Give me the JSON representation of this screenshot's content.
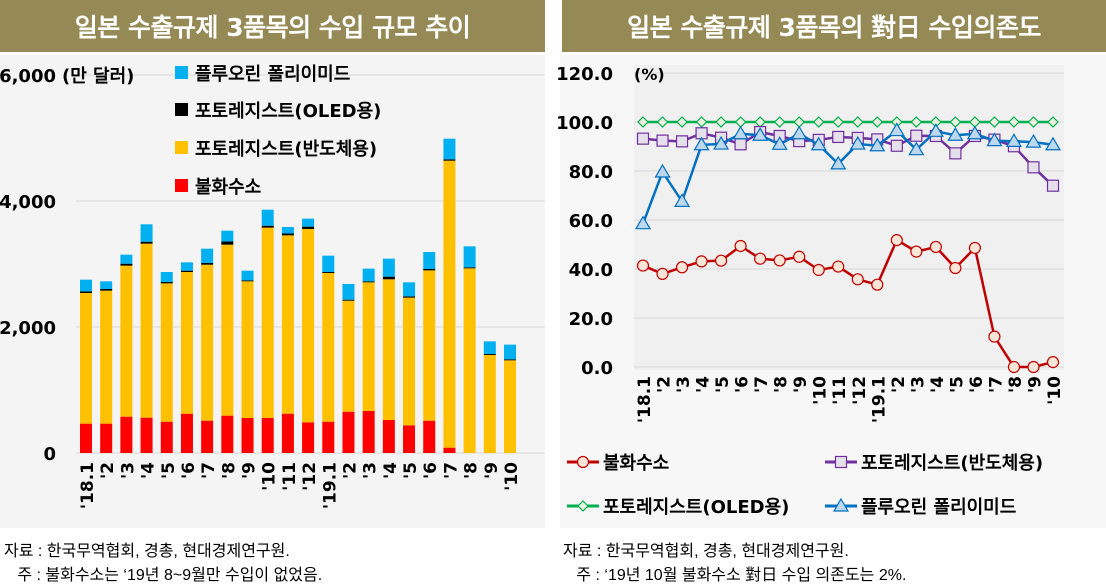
{
  "left_panel": {
    "title": "일본 수출규제 3품목의 수입 규모 추이",
    "notes": [
      "자료 : 한국무역협회, 경총, 현대경제연구원.",
      "   주 : 불화수소는 ‘19년 8~9월만 수입이 없었음."
    ]
  },
  "right_panel": {
    "title": "일본 수출규제 3품목의 對日 수입의존도",
    "notes": [
      "자료 : 한국무역협회, 경총, 현대경제연구원.",
      "   주 : ‘19년 10월 불화수소 對日 수입 의존도는 2%."
    ]
  },
  "chart_data": [
    {
      "type": "bar",
      "stacked": true,
      "unit_label": "(만 달러)",
      "categories": [
        "'18.1",
        "'2",
        "'3",
        "'4",
        "'5",
        "'6",
        "'7",
        "'8",
        "'9",
        "'10",
        "'11",
        "'12",
        "'19.1",
        "'2",
        "'3",
        "'4",
        "'5",
        "'6",
        "'7",
        "'8",
        "'9",
        "'10"
      ],
      "ylim": [
        0,
        6000
      ],
      "yticks": [
        "0",
        "2,000",
        "4,000",
        "6,000"
      ],
      "grid": true,
      "legend_placement": "top-center",
      "series": [
        {
          "name": "불화수소",
          "color": "#FF0000",
          "values": [
            466,
            466,
            577,
            561,
            497,
            624,
            513,
            593,
            556,
            556,
            624,
            487,
            497,
            656,
            667,
            524,
            439,
            513,
            85,
            0,
            0,
            0
          ]
        },
        {
          "name": "포토레지스트(반도체용)",
          "color": "#FFC000",
          "values": [
            2074,
            2111,
            2397,
            2762,
            2196,
            2249,
            2476,
            2714,
            2169,
            3021,
            2831,
            3069,
            2360,
            1762,
            2042,
            2233,
            2027,
            2386,
            4555,
            2931,
            1556,
            1471
          ]
        },
        {
          "name": "포토레지스트(OLED용)",
          "color": "#000000",
          "values": [
            26,
            26,
            31,
            31,
            21,
            21,
            27,
            53,
            16,
            31,
            32,
            37,
            16,
            16,
            16,
            42,
            21,
            22,
            21,
            16,
            15,
            16
          ]
        },
        {
          "name": "플루오린 폴리이미드",
          "color": "#00B0F0",
          "values": [
            185,
            122,
            143,
            276,
            159,
            132,
            227,
            169,
            153,
            254,
            100,
            127,
            259,
            249,
            201,
            286,
            222,
            269,
            328,
            333,
            201,
            233
          ]
        }
      ]
    },
    {
      "type": "line",
      "unit_label": "(%)",
      "categories": [
        "'18.1",
        "'2",
        "'3",
        "'4",
        "'5",
        "'6",
        "'7",
        "'8",
        "'9",
        "'10",
        "'11",
        "'12",
        "'19.1",
        "'2",
        "'3",
        "'4",
        "'5",
        "'6",
        "'7",
        "'8",
        "'9",
        "'10"
      ],
      "ylim": [
        0,
        120
      ],
      "yticks": [
        "0.0",
        "20.0",
        "40.0",
        "60.0",
        "80.0",
        "100.0",
        "120.0"
      ],
      "grid": true,
      "legend_placement": "bottom",
      "series": [
        {
          "name": "불화수소",
          "color": "#C00000",
          "marker": "circle",
          "marker_fill": "#FBE5D6",
          "values": [
            41.4,
            38.0,
            40.7,
            43.1,
            43.4,
            49.4,
            44.2,
            43.5,
            45.0,
            39.6,
            41.0,
            35.8,
            33.6,
            51.8,
            47.1,
            49.0,
            40.4,
            48.6,
            12.4,
            0.0,
            0.0,
            2.0
          ]
        },
        {
          "name": "포토레지스트(반도체용)",
          "color": "#7030A0",
          "marker": "square",
          "marker_fill": "#E6E0EC",
          "values": [
            93.2,
            92.4,
            92.1,
            95.4,
            93.6,
            90.9,
            95.9,
            94.3,
            92.2,
            92.7,
            93.9,
            93.5,
            92.9,
            90.3,
            94.4,
            94.3,
            87.2,
            94.3,
            92.8,
            90.1,
            81.5,
            74.0
          ]
        },
        {
          "name": "포토레지스트(OLED용)",
          "color": "#00B050",
          "marker": "diamond",
          "marker_fill": "#EBF1DE",
          "values": [
            100,
            100,
            100,
            100,
            100,
            100,
            100,
            100,
            100,
            100,
            100,
            100,
            100,
            100,
            100,
            100,
            100,
            100,
            100,
            100,
            100,
            100
          ]
        },
        {
          "name": "플루오린 폴리이미드",
          "color": "#0070C0",
          "marker": "triangle",
          "marker_fill": "#BDD7EE",
          "values": [
            58.5,
            79.6,
            67.6,
            90.7,
            91.0,
            95.2,
            94.6,
            90.9,
            95.2,
            90.7,
            82.9,
            91.0,
            90.3,
            96.5,
            88.7,
            96.2,
            94.6,
            95.2,
            92.4,
            92.1,
            91.8,
            90.7
          ]
        }
      ]
    }
  ]
}
